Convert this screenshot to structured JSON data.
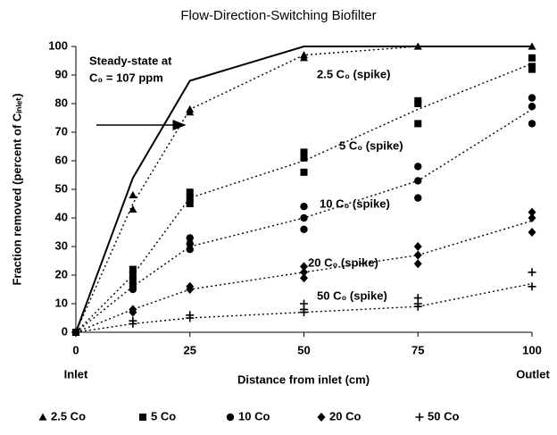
{
  "chart_data": {
    "type": "scatter",
    "title": "Flow-Direction-Switching  Biofilter",
    "x_label": "Distance from inlet (cm)",
    "y_label": "Fraction removed (percent of Cᵢₙₗₑₜ)",
    "x_end_labels": [
      "Inlet",
      "Outlet"
    ],
    "xlim": [
      0,
      100
    ],
    "xticks": [
      0,
      25,
      50,
      75,
      100
    ],
    "ylim": [
      0,
      100
    ],
    "yticks": [
      0,
      10,
      20,
      30,
      40,
      50,
      60,
      70,
      80,
      90,
      100
    ],
    "series": [
      {
        "name": "2.5 Co",
        "color": "#000000",
        "marker": "triangle",
        "x": [
          0,
          12.5,
          12.5,
          25,
          25,
          50,
          50,
          75,
          100
        ],
        "values": [
          0,
          48,
          43,
          78,
          77,
          97,
          96,
          100,
          100
        ]
      },
      {
        "name": "5 Co",
        "color": "#000000",
        "marker": "square",
        "x": [
          0,
          12.5,
          12.5,
          12.5,
          25,
          25,
          25,
          50,
          50,
          50,
          75,
          75,
          75,
          100,
          100,
          100
        ],
        "values": [
          0,
          22,
          20,
          18,
          49,
          47,
          45,
          63,
          61,
          56,
          81,
          80,
          73,
          96,
          93,
          92
        ]
      },
      {
        "name": "10 Co",
        "color": "#000000",
        "marker": "circle",
        "x": [
          0,
          12.5,
          12.5,
          12.5,
          25,
          25,
          25,
          50,
          50,
          50,
          75,
          75,
          75,
          100,
          100,
          100
        ],
        "values": [
          0,
          17,
          16,
          15,
          33,
          31,
          29,
          44,
          40,
          36,
          58,
          53,
          47,
          82,
          79,
          73
        ]
      },
      {
        "name": "20 Co",
        "color": "#000000",
        "marker": "diamond",
        "x": [
          0,
          12.5,
          12.5,
          25,
          25,
          50,
          50,
          50,
          75,
          75,
          75,
          100,
          100,
          100
        ],
        "values": [
          0,
          8,
          7,
          16,
          15,
          23,
          21,
          19,
          30,
          27,
          24,
          42,
          40,
          35
        ]
      },
      {
        "name": "50 Co",
        "color": "#000000",
        "marker": "plus",
        "x": [
          0,
          12.5,
          12.5,
          25,
          25,
          50,
          50,
          50,
          75,
          75,
          75,
          100,
          100
        ],
        "values": [
          0,
          4,
          3,
          6,
          5,
          10,
          8,
          7,
          12,
          10,
          9,
          21,
          16
        ]
      }
    ],
    "lines": [
      {
        "style": "solid",
        "color": "#000000",
        "x": [
          0,
          12.5,
          25,
          50,
          75,
          100
        ],
        "values": [
          0,
          54,
          88,
          100,
          100,
          100
        ]
      },
      {
        "style": "dotted",
        "color": "#000000",
        "x": [
          0,
          12.5,
          25,
          50,
          75,
          100
        ],
        "values": [
          0,
          45,
          78,
          97,
          100,
          100
        ]
      },
      {
        "style": "dotted",
        "color": "#000000",
        "x": [
          0,
          12.5,
          25,
          50,
          75,
          100
        ],
        "values": [
          0,
          20,
          47,
          60,
          78,
          94
        ]
      },
      {
        "style": "dotted",
        "color": "#000000",
        "x": [
          0,
          12.5,
          25,
          50,
          75,
          100
        ],
        "values": [
          0,
          16,
          30,
          40,
          53,
          78
        ]
      },
      {
        "style": "dotted",
        "color": "#000000",
        "x": [
          0,
          12.5,
          25,
          50,
          75,
          100
        ],
        "values": [
          0,
          8,
          15,
          21,
          27,
          39
        ]
      },
      {
        "style": "dotted",
        "color": "#000000",
        "x": [
          0,
          12.5,
          25,
          50,
          75,
          100
        ],
        "values": [
          0,
          3,
          5,
          7,
          9,
          17
        ]
      }
    ],
    "annotations": [
      [
        "Steady-state at",
        "C₀ = 107 ppm"
      ],
      [
        "2.5 C₀ (spike)"
      ],
      [
        "5 C₀ (spike)"
      ],
      [
        "10 C₀ (spike)"
      ],
      [
        "20 C₀ (spike)"
      ],
      [
        "50 C₀ (spike)"
      ]
    ]
  }
}
